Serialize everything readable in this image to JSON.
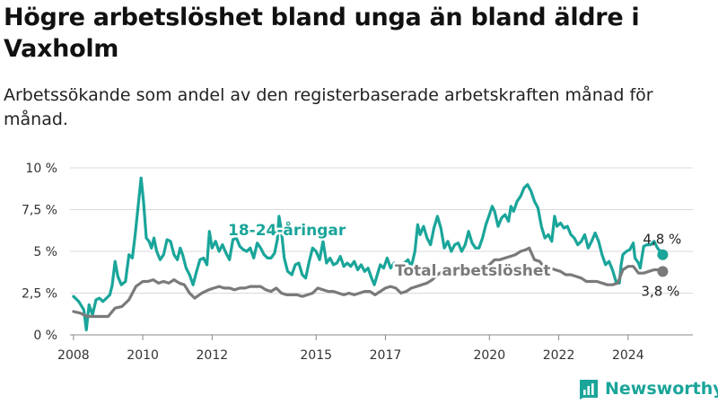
{
  "title": "Högre arbetslöshet bland unga än bland äldre i Vaxholm",
  "subtitle": "Arbetssökande som andel av den registerbaserade arbetskraften månad för månad.",
  "logo": {
    "text": "Newsworthy",
    "icon": "bar-chart-logo-icon"
  },
  "colors": {
    "youth": "#1aa59a",
    "total": "#7a7a7a",
    "grid": "#d9d9d9",
    "axis": "#888888"
  },
  "chart_data": {
    "type": "line",
    "ylim": [
      0,
      10
    ],
    "xlim": [
      2007.9,
      2025.0
    ],
    "y_ticks": [
      {
        "value": 0,
        "label": "0 %"
      },
      {
        "value": 2.5,
        "label": "2,5 %"
      },
      {
        "value": 5,
        "label": "5 %"
      },
      {
        "value": 7.5,
        "label": "7,5 %"
      },
      {
        "value": 10,
        "label": "10 %"
      }
    ],
    "x_ticks": [
      {
        "value": 2008,
        "label": "2008"
      },
      {
        "value": 2010,
        "label": "2010"
      },
      {
        "value": 2012,
        "label": "2012"
      },
      {
        "value": 2015,
        "label": "2015"
      },
      {
        "value": 2017,
        "label": "2017"
      },
      {
        "value": 2020,
        "label": "2020"
      },
      {
        "value": 2022,
        "label": "2022"
      },
      {
        "value": 2024,
        "label": "2024"
      }
    ],
    "grid": true,
    "series": [
      {
        "name": "18-24-åringar",
        "color": "#1aa59a",
        "end_label": "4,8 %",
        "points": [
          [
            2008.0,
            2.3
          ],
          [
            2008.15,
            2.0
          ],
          [
            2008.3,
            1.5
          ],
          [
            2008.37,
            0.3
          ],
          [
            2008.45,
            1.8
          ],
          [
            2008.55,
            1.2
          ],
          [
            2008.65,
            2.1
          ],
          [
            2008.75,
            2.2
          ],
          [
            2008.85,
            2.0
          ],
          [
            2008.95,
            2.2
          ],
          [
            2009.05,
            2.4
          ],
          [
            2009.12,
            3.0
          ],
          [
            2009.2,
            4.4
          ],
          [
            2009.28,
            3.5
          ],
          [
            2009.38,
            3.0
          ],
          [
            2009.5,
            3.2
          ],
          [
            2009.6,
            4.8
          ],
          [
            2009.7,
            4.6
          ],
          [
            2009.78,
            6.0
          ],
          [
            2009.88,
            8.0
          ],
          [
            2009.95,
            9.4
          ],
          [
            2010.02,
            8.0
          ],
          [
            2010.1,
            5.8
          ],
          [
            2010.18,
            5.6
          ],
          [
            2010.25,
            5.2
          ],
          [
            2010.32,
            5.8
          ],
          [
            2010.4,
            5.0
          ],
          [
            2010.5,
            4.5
          ],
          [
            2010.6,
            4.8
          ],
          [
            2010.7,
            5.7
          ],
          [
            2010.8,
            5.6
          ],
          [
            2010.9,
            4.8
          ],
          [
            2011.0,
            4.5
          ],
          [
            2011.08,
            5.2
          ],
          [
            2011.15,
            4.8
          ],
          [
            2011.25,
            4.0
          ],
          [
            2011.35,
            3.6
          ],
          [
            2011.45,
            3.0
          ],
          [
            2011.55,
            3.8
          ],
          [
            2011.65,
            4.5
          ],
          [
            2011.75,
            4.6
          ],
          [
            2011.85,
            4.2
          ],
          [
            2011.92,
            6.2
          ],
          [
            2012.0,
            5.2
          ],
          [
            2012.1,
            5.6
          ],
          [
            2012.2,
            5.0
          ],
          [
            2012.3,
            5.4
          ],
          [
            2012.4,
            4.9
          ],
          [
            2012.5,
            4.5
          ],
          [
            2012.6,
            5.7
          ],
          [
            2012.7,
            5.8
          ],
          [
            2012.8,
            5.3
          ],
          [
            2012.9,
            5.1
          ],
          [
            2013.0,
            5.0
          ],
          [
            2013.1,
            5.2
          ],
          [
            2013.2,
            4.6
          ],
          [
            2013.3,
            5.5
          ],
          [
            2013.4,
            5.2
          ],
          [
            2013.5,
            4.8
          ],
          [
            2013.6,
            4.6
          ],
          [
            2013.7,
            4.6
          ],
          [
            2013.8,
            4.9
          ],
          [
            2013.88,
            5.7
          ],
          [
            2013.93,
            7.1
          ],
          [
            2014.0,
            6.2
          ],
          [
            2014.08,
            4.6
          ],
          [
            2014.18,
            3.8
          ],
          [
            2014.3,
            3.6
          ],
          [
            2014.4,
            4.2
          ],
          [
            2014.5,
            4.3
          ],
          [
            2014.6,
            3.6
          ],
          [
            2014.7,
            3.4
          ],
          [
            2014.8,
            4.4
          ],
          [
            2014.9,
            5.2
          ],
          [
            2015.0,
            5.0
          ],
          [
            2015.1,
            4.5
          ],
          [
            2015.2,
            5.6
          ],
          [
            2015.3,
            4.3
          ],
          [
            2015.4,
            4.6
          ],
          [
            2015.5,
            4.2
          ],
          [
            2015.6,
            4.3
          ],
          [
            2015.7,
            4.7
          ],
          [
            2015.8,
            4.1
          ],
          [
            2015.9,
            4.3
          ],
          [
            2016.0,
            4.1
          ],
          [
            2016.1,
            4.4
          ],
          [
            2016.2,
            3.9
          ],
          [
            2016.3,
            4.2
          ],
          [
            2016.4,
            3.8
          ],
          [
            2016.5,
            4.0
          ],
          [
            2016.6,
            3.4
          ],
          [
            2016.68,
            3.0
          ],
          [
            2016.75,
            3.5
          ],
          [
            2016.85,
            4.2
          ],
          [
            2016.95,
            4.0
          ],
          [
            2017.05,
            4.6
          ],
          [
            2017.15,
            4.0
          ],
          [
            2017.25,
            4.3
          ],
          [
            2017.35,
            4.2
          ],
          [
            2017.45,
            4.0
          ],
          [
            2017.55,
            4.3
          ],
          [
            2017.65,
            4.5
          ],
          [
            2017.75,
            4.1
          ],
          [
            2017.85,
            5.0
          ],
          [
            2017.93,
            6.6
          ],
          [
            2018.0,
            6.0
          ],
          [
            2018.1,
            6.5
          ],
          [
            2018.2,
            5.8
          ],
          [
            2018.3,
            5.4
          ],
          [
            2018.4,
            6.4
          ],
          [
            2018.5,
            7.1
          ],
          [
            2018.6,
            6.4
          ],
          [
            2018.7,
            5.2
          ],
          [
            2018.8,
            5.6
          ],
          [
            2018.9,
            5.0
          ],
          [
            2019.0,
            5.4
          ],
          [
            2019.1,
            5.5
          ],
          [
            2019.2,
            5.0
          ],
          [
            2019.3,
            5.4
          ],
          [
            2019.4,
            6.2
          ],
          [
            2019.5,
            5.5
          ],
          [
            2019.6,
            5.2
          ],
          [
            2019.7,
            5.2
          ],
          [
            2019.8,
            5.8
          ],
          [
            2019.9,
            6.6
          ],
          [
            2020.0,
            7.2
          ],
          [
            2020.08,
            7.7
          ],
          [
            2020.15,
            7.4
          ],
          [
            2020.25,
            6.5
          ],
          [
            2020.35,
            7.0
          ],
          [
            2020.45,
            7.2
          ],
          [
            2020.55,
            6.8
          ],
          [
            2020.62,
            7.7
          ],
          [
            2020.7,
            7.4
          ],
          [
            2020.8,
            8.0
          ],
          [
            2020.9,
            8.3
          ],
          [
            2021.0,
            8.8
          ],
          [
            2021.1,
            9.0
          ],
          [
            2021.2,
            8.6
          ],
          [
            2021.3,
            8.0
          ],
          [
            2021.4,
            7.6
          ],
          [
            2021.5,
            6.5
          ],
          [
            2021.6,
            5.8
          ],
          [
            2021.7,
            6.0
          ],
          [
            2021.8,
            5.6
          ],
          [
            2021.88,
            7.1
          ],
          [
            2021.95,
            6.5
          ],
          [
            2022.05,
            6.7
          ],
          [
            2022.15,
            6.4
          ],
          [
            2022.25,
            6.5
          ],
          [
            2022.35,
            6.0
          ],
          [
            2022.45,
            5.8
          ],
          [
            2022.55,
            5.4
          ],
          [
            2022.65,
            5.6
          ],
          [
            2022.75,
            6.0
          ],
          [
            2022.85,
            5.2
          ],
          [
            2022.95,
            5.6
          ],
          [
            2023.05,
            6.1
          ],
          [
            2023.15,
            5.6
          ],
          [
            2023.25,
            4.8
          ],
          [
            2023.35,
            4.2
          ],
          [
            2023.45,
            4.4
          ],
          [
            2023.55,
            3.9
          ],
          [
            2023.65,
            3.2
          ],
          [
            2023.75,
            3.1
          ],
          [
            2023.8,
            4.2
          ],
          [
            2023.85,
            4.8
          ],
          [
            2023.95,
            5.0
          ],
          [
            2024.05,
            5.1
          ],
          [
            2024.15,
            5.5
          ],
          [
            2024.2,
            4.6
          ],
          [
            2024.3,
            4.3
          ],
          [
            2024.35,
            4.0
          ],
          [
            2024.45,
            5.3
          ],
          [
            2024.55,
            5.4
          ],
          [
            2024.65,
            5.4
          ],
          [
            2024.75,
            5.6
          ],
          [
            2024.85,
            5.2
          ],
          [
            2024.93,
            5.0
          ],
          [
            2025.0,
            4.8
          ]
        ]
      },
      {
        "name": "Total arbetslöshet",
        "color": "#7a7a7a",
        "end_label": "3,8 %",
        "points": [
          [
            2008.0,
            1.4
          ],
          [
            2008.2,
            1.3
          ],
          [
            2008.4,
            1.1
          ],
          [
            2008.6,
            1.1
          ],
          [
            2008.8,
            1.1
          ],
          [
            2009.0,
            1.1
          ],
          [
            2009.2,
            1.6
          ],
          [
            2009.4,
            1.7
          ],
          [
            2009.6,
            2.1
          ],
          [
            2009.8,
            2.9
          ],
          [
            2010.0,
            3.2
          ],
          [
            2010.15,
            3.2
          ],
          [
            2010.3,
            3.3
          ],
          [
            2010.45,
            3.1
          ],
          [
            2010.6,
            3.2
          ],
          [
            2010.75,
            3.1
          ],
          [
            2010.9,
            3.3
          ],
          [
            2011.05,
            3.1
          ],
          [
            2011.2,
            3.0
          ],
          [
            2011.35,
            2.5
          ],
          [
            2011.5,
            2.2
          ],
          [
            2011.7,
            2.5
          ],
          [
            2011.9,
            2.7
          ],
          [
            2012.05,
            2.8
          ],
          [
            2012.2,
            2.9
          ],
          [
            2012.35,
            2.8
          ],
          [
            2012.5,
            2.8
          ],
          [
            2012.65,
            2.7
          ],
          [
            2012.8,
            2.8
          ],
          [
            2012.95,
            2.8
          ],
          [
            2013.1,
            2.9
          ],
          [
            2013.25,
            2.9
          ],
          [
            2013.4,
            2.9
          ],
          [
            2013.55,
            2.7
          ],
          [
            2013.7,
            2.6
          ],
          [
            2013.85,
            2.8
          ],
          [
            2014.0,
            2.5
          ],
          [
            2014.15,
            2.4
          ],
          [
            2014.3,
            2.4
          ],
          [
            2014.45,
            2.4
          ],
          [
            2014.6,
            2.3
          ],
          [
            2014.75,
            2.4
          ],
          [
            2014.9,
            2.5
          ],
          [
            2015.05,
            2.8
          ],
          [
            2015.2,
            2.7
          ],
          [
            2015.35,
            2.6
          ],
          [
            2015.5,
            2.6
          ],
          [
            2015.65,
            2.5
          ],
          [
            2015.8,
            2.4
          ],
          [
            2015.95,
            2.5
          ],
          [
            2016.1,
            2.4
          ],
          [
            2016.25,
            2.5
          ],
          [
            2016.4,
            2.6
          ],
          [
            2016.55,
            2.6
          ],
          [
            2016.7,
            2.4
          ],
          [
            2016.85,
            2.6
          ],
          [
            2017.0,
            2.8
          ],
          [
            2017.15,
            2.9
          ],
          [
            2017.3,
            2.8
          ],
          [
            2017.45,
            2.5
          ],
          [
            2017.6,
            2.6
          ],
          [
            2017.75,
            2.8
          ],
          [
            2017.9,
            2.9
          ],
          [
            2018.05,
            3.0
          ],
          [
            2018.2,
            3.1
          ],
          [
            2018.35,
            3.3
          ],
          [
            2018.5,
            3.6
          ],
          [
            2018.65,
            3.8
          ],
          [
            2018.8,
            3.9
          ],
          [
            2018.95,
            3.8
          ],
          [
            2019.1,
            3.9
          ],
          [
            2019.25,
            3.8
          ],
          [
            2019.4,
            4.0
          ],
          [
            2019.55,
            3.8
          ],
          [
            2019.7,
            3.9
          ],
          [
            2019.85,
            4.0
          ],
          [
            2020.0,
            4.2
          ],
          [
            2020.15,
            4.5
          ],
          [
            2020.3,
            4.5
          ],
          [
            2020.45,
            4.6
          ],
          [
            2020.6,
            4.7
          ],
          [
            2020.75,
            4.8
          ],
          [
            2020.9,
            5.0
          ],
          [
            2021.05,
            5.1
          ],
          [
            2021.15,
            5.2
          ],
          [
            2021.3,
            4.5
          ],
          [
            2021.45,
            4.4
          ],
          [
            2021.6,
            4.0
          ],
          [
            2021.75,
            4.0
          ],
          [
            2021.9,
            3.9
          ],
          [
            2022.05,
            3.8
          ],
          [
            2022.2,
            3.6
          ],
          [
            2022.35,
            3.6
          ],
          [
            2022.5,
            3.5
          ],
          [
            2022.65,
            3.4
          ],
          [
            2022.8,
            3.2
          ],
          [
            2022.95,
            3.2
          ],
          [
            2023.1,
            3.2
          ],
          [
            2023.25,
            3.1
          ],
          [
            2023.4,
            3.0
          ],
          [
            2023.55,
            3.0
          ],
          [
            2023.7,
            3.1
          ],
          [
            2023.85,
            3.9
          ],
          [
            2024.0,
            4.1
          ],
          [
            2024.15,
            4.1
          ],
          [
            2024.3,
            3.7
          ],
          [
            2024.45,
            3.7
          ],
          [
            2024.6,
            3.8
          ],
          [
            2024.75,
            3.9
          ],
          [
            2024.9,
            3.9
          ],
          [
            2025.0,
            3.8
          ]
        ]
      }
    ]
  }
}
